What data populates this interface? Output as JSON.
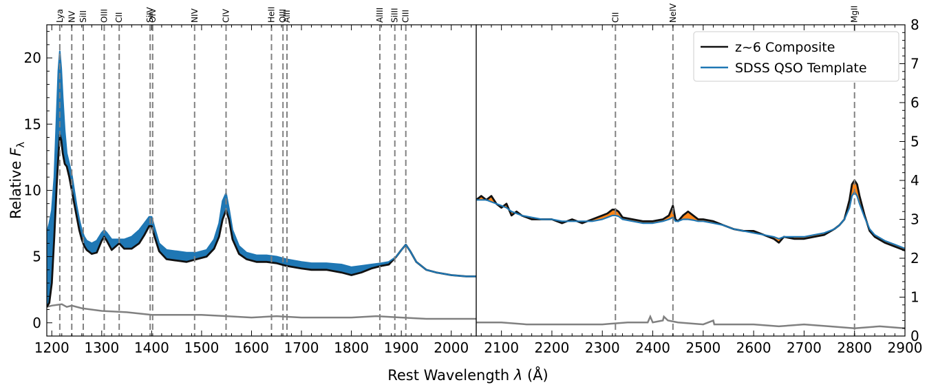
{
  "chart_data": {
    "type": "line",
    "xlabel": "Rest Wavelength $\\lambda$ (Å)",
    "xlabel_parts": {
      "main": "Rest Wavelength ",
      "lambda": "λ",
      "unit": " (Å)"
    },
    "ylabel_left": "Relative $F_\\lambda$",
    "ylabel_parts": {
      "main": "Relative ",
      "F": "F",
      "sub": "λ"
    },
    "grid": false,
    "legend_placement": "top-right",
    "legend": [
      {
        "label": "z~6 Composite",
        "color": "#111111"
      },
      {
        "label": "SDSS QSO Template",
        "color": "#1f77b4"
      }
    ],
    "colors": {
      "composite": "#111111",
      "template": "#1f77b4",
      "error": "#808080",
      "excess": "#ff7f0e",
      "vline": "#808080"
    },
    "panels": [
      {
        "name": "left",
        "xlim": [
          1190,
          2050
        ],
        "ylim": [
          -1,
          22.5
        ],
        "xticks": [
          1200,
          1300,
          1400,
          1500,
          1600,
          1700,
          1800,
          1900,
          2000
        ],
        "yticks": [
          0,
          5,
          10,
          15,
          20
        ],
        "lines": [
          {
            "label": "Lya",
            "x": 1216
          },
          {
            "label": "NV",
            "x": 1240
          },
          {
            "label": "SiII",
            "x": 1263
          },
          {
            "label": "OIII",
            "x": 1305
          },
          {
            "label": "CII",
            "x": 1335
          },
          {
            "label": "SiIV",
            "x": 1397
          },
          {
            "label": "OIV",
            "x": 1402
          },
          {
            "label": "NIV",
            "x": 1486
          },
          {
            "label": "CIV",
            "x": 1549
          },
          {
            "label": "HeII",
            "x": 1640
          },
          {
            "label": "OIII",
            "x": 1663
          },
          {
            "label": "AlII",
            "x": 1671
          },
          {
            "label": "AlIII",
            "x": 1857
          },
          {
            "label": "SiIII",
            "x": 1887
          },
          {
            "label": "CIII",
            "x": 1909
          }
        ],
        "composite": {
          "x": [
            1190,
            1195,
            1200,
            1205,
            1210,
            1213,
            1216,
            1219,
            1222,
            1226,
            1230,
            1235,
            1240,
            1245,
            1250,
            1255,
            1260,
            1265,
            1270,
            1280,
            1290,
            1300,
            1305,
            1310,
            1320,
            1335,
            1345,
            1360,
            1375,
            1385,
            1395,
            1400,
            1405,
            1415,
            1430,
            1450,
            1470,
            1490,
            1510,
            1525,
            1535,
            1542,
            1549,
            1555,
            1562,
            1575,
            1590,
            1610,
            1630,
            1650,
            1670,
            1700,
            1720,
            1750,
            1780,
            1800,
            1820,
            1840,
            1860,
            1875,
            1890,
            1900,
            1909,
            1918,
            1930,
            1950,
            1970,
            2000,
            2030,
            2050
          ],
          "y": [
            1.2,
            1.5,
            3.0,
            6.5,
            10.5,
            12.5,
            14.2,
            13.8,
            12.8,
            12.0,
            11.8,
            11.0,
            10.0,
            9.0,
            8.0,
            7.0,
            6.3,
            5.8,
            5.5,
            5.2,
            5.3,
            6.2,
            6.5,
            6.2,
            5.5,
            6.0,
            5.6,
            5.6,
            6.0,
            6.6,
            7.3,
            7.3,
            6.6,
            5.4,
            4.8,
            4.7,
            4.6,
            4.8,
            5.0,
            5.6,
            6.5,
            7.8,
            8.5,
            7.8,
            6.3,
            5.2,
            4.8,
            4.6,
            4.6,
            4.5,
            4.3,
            4.1,
            4.0,
            4.0,
            3.8,
            3.6,
            3.8,
            4.1,
            4.3,
            4.4,
            5.0,
            5.5,
            5.9,
            5.4,
            4.6,
            4.0,
            3.8,
            3.6,
            3.5,
            3.5
          ]
        },
        "template": {
          "x": [
            1190,
            1195,
            1200,
            1205,
            1210,
            1213,
            1216,
            1219,
            1222,
            1226,
            1230,
            1235,
            1240,
            1245,
            1250,
            1255,
            1260,
            1265,
            1270,
            1280,
            1290,
            1300,
            1305,
            1310,
            1320,
            1335,
            1345,
            1360,
            1375,
            1385,
            1395,
            1400,
            1405,
            1415,
            1430,
            1450,
            1470,
            1490,
            1510,
            1525,
            1535,
            1542,
            1549,
            1555,
            1562,
            1575,
            1590,
            1610,
            1630,
            1650,
            1670,
            1700,
            1720,
            1750,
            1780,
            1800,
            1820,
            1840,
            1860,
            1875,
            1890,
            1900,
            1909,
            1918,
            1930,
            1950,
            1970,
            2000,
            2030,
            2050
          ],
          "y": [
            6.8,
            7.5,
            8.5,
            11.0,
            16.0,
            19.0,
            20.5,
            19.2,
            17.0,
            14.5,
            12.8,
            12.0,
            11.2,
            10.0,
            8.8,
            7.8,
            7.0,
            6.5,
            6.2,
            6.0,
            6.2,
            6.8,
            7.0,
            6.8,
            6.3,
            6.3,
            6.3,
            6.5,
            7.0,
            7.5,
            8.0,
            8.0,
            7.3,
            6.0,
            5.5,
            5.4,
            5.3,
            5.3,
            5.5,
            6.3,
            7.5,
            9.2,
            9.8,
            8.6,
            7.0,
            5.8,
            5.3,
            5.1,
            5.1,
            5.0,
            4.8,
            4.6,
            4.5,
            4.5,
            4.4,
            4.2,
            4.3,
            4.4,
            4.5,
            4.6,
            5.0,
            5.5,
            5.9,
            5.4,
            4.6,
            4.0,
            3.8,
            3.6,
            3.5,
            3.5
          ]
        },
        "template_band": {
          "lower": "composite",
          "upper": "template"
        },
        "error": {
          "x": [
            1190,
            1200,
            1220,
            1230,
            1240,
            1260,
            1300,
            1350,
            1400,
            1450,
            1500,
            1550,
            1600,
            1650,
            1700,
            1750,
            1800,
            1850,
            1900,
            1950,
            2000,
            2050
          ],
          "y": [
            1.2,
            1.3,
            1.4,
            1.2,
            1.3,
            1.1,
            0.9,
            0.8,
            0.6,
            0.6,
            0.6,
            0.5,
            0.4,
            0.5,
            0.4,
            0.4,
            0.4,
            0.5,
            0.4,
            0.3,
            0.3,
            0.3
          ]
        }
      },
      {
        "name": "right",
        "xlim": [
          2050,
          2900
        ],
        "ylim": [
          0,
          8
        ],
        "xticks": [
          2100,
          2200,
          2300,
          2400,
          2500,
          2600,
          2700,
          2800,
          2900
        ],
        "yticks": [
          0,
          1,
          2,
          3,
          4,
          5,
          6,
          7,
          8
        ],
        "lines": [
          {
            "label": "CII",
            "x": 2326
          },
          {
            "label": "NeIV",
            "x": 2440
          },
          {
            "label": "MgII",
            "x": 2800
          }
        ],
        "composite": {
          "x": [
            2050,
            2060,
            2070,
            2080,
            2090,
            2100,
            2110,
            2120,
            2130,
            2140,
            2160,
            2180,
            2200,
            2220,
            2240,
            2260,
            2280,
            2300,
            2310,
            2320,
            2326,
            2332,
            2340,
            2360,
            2380,
            2400,
            2420,
            2432,
            2440,
            2445,
            2450,
            2460,
            2470,
            2480,
            2490,
            2500,
            2520,
            2540,
            2560,
            2580,
            2600,
            2620,
            2640,
            2650,
            2660,
            2680,
            2700,
            2720,
            2740,
            2760,
            2770,
            2780,
            2790,
            2795,
            2800,
            2805,
            2810,
            2820,
            2830,
            2840,
            2860,
            2880,
            2900
          ],
          "y": [
            3.5,
            3.6,
            3.5,
            3.6,
            3.4,
            3.3,
            3.4,
            3.1,
            3.2,
            3.1,
            3.0,
            3.0,
            3.0,
            2.9,
            3.0,
            2.9,
            3.0,
            3.1,
            3.15,
            3.25,
            3.25,
            3.2,
            3.05,
            3.0,
            2.95,
            2.95,
            3.0,
            3.1,
            3.35,
            3.0,
            2.95,
            3.1,
            3.2,
            3.1,
            3.0,
            3.0,
            2.95,
            2.85,
            2.75,
            2.7,
            2.7,
            2.6,
            2.5,
            2.4,
            2.55,
            2.5,
            2.5,
            2.55,
            2.6,
            2.75,
            2.85,
            3.0,
            3.5,
            3.9,
            4.0,
            3.9,
            3.6,
            3.1,
            2.7,
            2.55,
            2.4,
            2.3,
            2.2
          ]
        },
        "template": {
          "x": [
            2050,
            2060,
            2070,
            2080,
            2090,
            2100,
            2110,
            2120,
            2130,
            2140,
            2160,
            2180,
            2200,
            2220,
            2240,
            2260,
            2280,
            2300,
            2310,
            2320,
            2326,
            2332,
            2340,
            2360,
            2380,
            2400,
            2420,
            2432,
            2440,
            2445,
            2450,
            2460,
            2470,
            2480,
            2490,
            2500,
            2520,
            2540,
            2560,
            2580,
            2600,
            2620,
            2640,
            2650,
            2660,
            2680,
            2700,
            2720,
            2740,
            2760,
            2770,
            2780,
            2790,
            2795,
            2800,
            2805,
            2810,
            2820,
            2830,
            2840,
            2860,
            2880,
            2900
          ],
          "y": [
            3.5,
            3.5,
            3.5,
            3.45,
            3.4,
            3.35,
            3.3,
            3.2,
            3.15,
            3.1,
            3.05,
            3.0,
            3.0,
            2.95,
            2.95,
            2.95,
            2.95,
            3.0,
            3.05,
            3.1,
            3.1,
            3.08,
            3.0,
            2.95,
            2.9,
            2.9,
            2.95,
            3.0,
            3.05,
            2.95,
            2.95,
            3.0,
            3.0,
            2.98,
            2.95,
            2.95,
            2.9,
            2.85,
            2.75,
            2.7,
            2.65,
            2.6,
            2.55,
            2.5,
            2.55,
            2.55,
            2.55,
            2.6,
            2.65,
            2.75,
            2.85,
            3.0,
            3.3,
            3.6,
            3.7,
            3.6,
            3.4,
            3.05,
            2.75,
            2.6,
            2.45,
            2.35,
            2.25
          ]
        },
        "error": {
          "x": [
            2050,
            2100,
            2150,
            2200,
            2250,
            2300,
            2350,
            2390,
            2395,
            2400,
            2420,
            2422,
            2430,
            2450,
            2500,
            2520,
            2522,
            2550,
            2600,
            2650,
            2700,
            2750,
            2800,
            2850,
            2900
          ],
          "y": [
            0.35,
            0.35,
            0.3,
            0.3,
            0.3,
            0.3,
            0.35,
            0.35,
            0.5,
            0.35,
            0.4,
            0.5,
            0.4,
            0.35,
            0.3,
            0.4,
            0.3,
            0.3,
            0.3,
            0.25,
            0.3,
            0.25,
            0.2,
            0.25,
            0.2
          ]
        }
      }
    ]
  }
}
